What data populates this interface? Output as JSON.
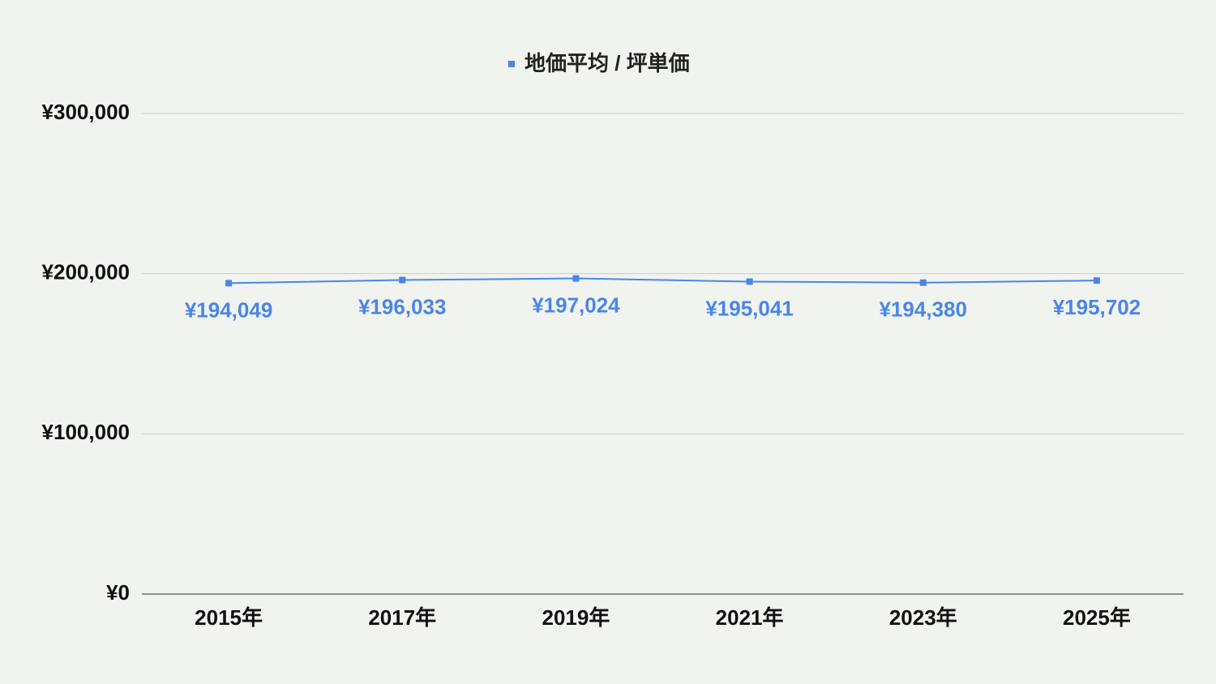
{
  "chart_data": {
    "type": "line",
    "categories": [
      "2015年",
      "2017年",
      "2019年",
      "2021年",
      "2023年",
      "2025年"
    ],
    "series": [
      {
        "name": "地価平均 / 坪単価",
        "color": "#4a86e8",
        "values": [
          194049,
          196033,
          197024,
          195041,
          194380,
          195702
        ],
        "value_labels": [
          "¥194,049",
          "¥196,033",
          "¥197,024",
          "¥195,041",
          "¥194,380",
          "¥195,702"
        ]
      }
    ],
    "ylim": [
      0,
      300000
    ],
    "yticks": [
      {
        "value": 0,
        "label": "¥0"
      },
      {
        "value": 100000,
        "label": "¥100,000"
      },
      {
        "value": 200000,
        "label": "¥200,000"
      },
      {
        "value": 300000,
        "label": "¥300,000"
      }
    ],
    "grid": true,
    "legend": "top"
  }
}
